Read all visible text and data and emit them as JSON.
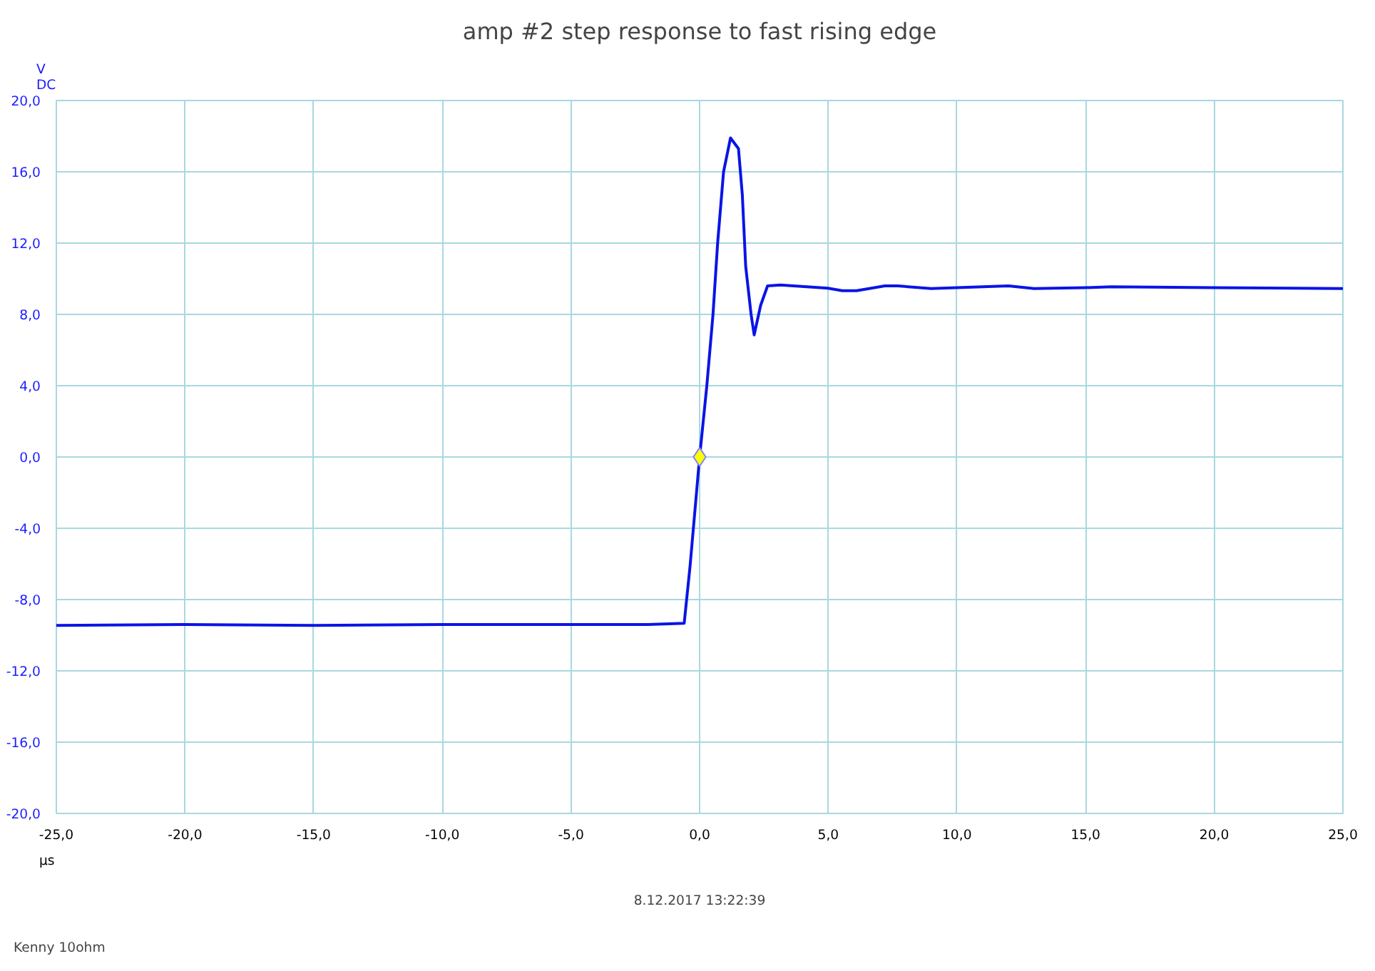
{
  "chart_data": {
    "type": "line",
    "title": "amp #2 step response to fast rising edge",
    "xlabel": "µs",
    "ylabel": "V\nDC",
    "xlim": [
      -25,
      25
    ],
    "ylim": [
      -20,
      20
    ],
    "xticks": [
      {
        "value": -25,
        "label": "-25,0"
      },
      {
        "value": -20,
        "label": "-20,0"
      },
      {
        "value": -15,
        "label": "-15,0"
      },
      {
        "value": -10,
        "label": "-10,0"
      },
      {
        "value": -5,
        "label": "-5,0"
      },
      {
        "value": 0,
        "label": "0,0"
      },
      {
        "value": 5,
        "label": "5,0"
      },
      {
        "value": 10,
        "label": "10,0"
      },
      {
        "value": 15,
        "label": "15,0"
      },
      {
        "value": 20,
        "label": "20,0"
      },
      {
        "value": 25,
        "label": "25,0"
      }
    ],
    "yticks": [
      {
        "value": -20,
        "label": "-20,0"
      },
      {
        "value": -16,
        "label": "-16,0"
      },
      {
        "value": -12,
        "label": "-12,0"
      },
      {
        "value": -8,
        "label": "-8,0"
      },
      {
        "value": -4,
        "label": "-4,0"
      },
      {
        "value": 0,
        "label": "0,0"
      },
      {
        "value": 4,
        "label": "4,0"
      },
      {
        "value": 8,
        "label": "8,0"
      },
      {
        "value": 12,
        "label": "12,0"
      },
      {
        "value": 16,
        "label": "16,0"
      },
      {
        "value": 20,
        "label": "20,0"
      }
    ],
    "grid": true,
    "line_style": "solid",
    "series": [
      {
        "type": "line",
        "marker": "none",
        "color": "#0a14e6",
        "x": [
          -25,
          -20,
          -15,
          -10,
          -5,
          -2,
          -0.6,
          -0.37,
          0,
          0.28,
          0.52,
          0.7,
          0.93,
          1.2,
          1.51,
          1.66,
          1.79,
          2.0,
          2.12,
          2.37,
          2.64,
          3.14,
          4.99,
          5.54,
          6.1,
          7.2,
          7.7,
          9,
          12,
          13,
          15,
          16,
          20,
          25
        ],
        "values": [
          -9.45,
          -9.4,
          -9.45,
          -9.4,
          -9.4,
          -9.4,
          -9.33,
          -6.1,
          0,
          4.0,
          8.0,
          12.0,
          16.0,
          17.9,
          17.3,
          14.7,
          10.7,
          8.0,
          6.85,
          8.5,
          9.6,
          9.65,
          9.47,
          9.33,
          9.33,
          9.6,
          9.6,
          9.45,
          9.6,
          9.45,
          9.5,
          9.55,
          9.5,
          9.45
        ]
      },
      {
        "type": "scatter",
        "marker": "diamond",
        "color": "#ffff00",
        "x": [
          0
        ],
        "values": [
          0
        ]
      }
    ],
    "annotations": [
      "8.12.2017 13:22:39",
      "Kenny 10ohm"
    ]
  }
}
